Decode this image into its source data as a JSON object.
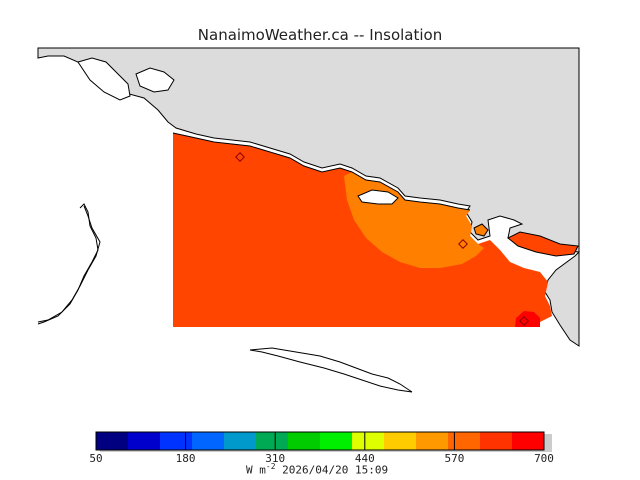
{
  "header": {
    "title": "NanaimoWeather.ca -- Insolation"
  },
  "map": {
    "colors": {
      "land": "#dcdcdc",
      "water": "#ffffff",
      "coast": "#000000",
      "field_main": "#ff4500",
      "field_warm": "#ff8000",
      "field_hot": "#ff0000"
    }
  },
  "colorbar": {
    "colors": [
      "#000080",
      "#0000cd",
      "#0033ff",
      "#0066ff",
      "#0099cc",
      "#00aa55",
      "#00cc00",
      "#00ee00",
      "#ddff00",
      "#ffcc00",
      "#ff9900",
      "#ff6600",
      "#ff3300",
      "#ff0000"
    ],
    "ticks": [
      "50",
      "180",
      "310",
      "440",
      "570",
      "700"
    ]
  },
  "footer": {
    "unit_base": "W m",
    "unit_exp": "-2",
    "timestamp": "2026/04/20 15:09"
  }
}
